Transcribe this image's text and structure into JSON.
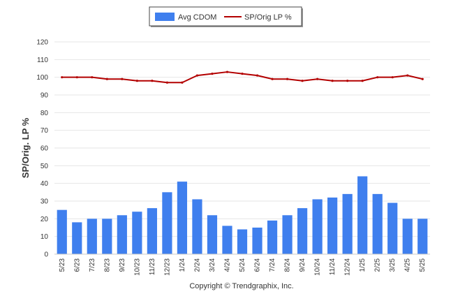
{
  "chart_data": {
    "type": "bar",
    "categories": [
      "5/23",
      "6/23",
      "7/23",
      "8/23",
      "9/23",
      "10/23",
      "11/23",
      "12/23",
      "1/24",
      "2/24",
      "3/24",
      "4/24",
      "5/24",
      "6/24",
      "7/24",
      "8/24",
      "9/24",
      "10/24",
      "11/24",
      "12/24",
      "1/25",
      "2/25",
      "3/25",
      "4/25",
      "5/25"
    ],
    "series": [
      {
        "name": "Avg CDOM",
        "type": "bar",
        "color": "#3f7fee",
        "values": [
          25,
          18,
          20,
          20,
          22,
          24,
          26,
          35,
          41,
          31,
          22,
          16,
          14,
          15,
          19,
          22,
          26,
          31,
          32,
          34,
          44,
          34,
          29,
          20,
          20
        ]
      },
      {
        "name": "SP/Orig LP %",
        "type": "line",
        "color": "#b30000",
        "values": [
          100,
          100,
          100,
          99,
          99,
          98,
          98,
          97,
          97,
          101,
          102,
          103,
          102,
          101,
          99,
          99,
          98,
          99,
          98,
          98,
          98,
          100,
          100,
          101,
          99
        ]
      }
    ],
    "ylabel": "SP/Orig. LP %",
    "ylim": [
      0,
      120
    ],
    "yticks": [
      0,
      10,
      20,
      30,
      40,
      50,
      60,
      70,
      80,
      90,
      100,
      110,
      120
    ],
    "grid": true,
    "legend_position": "top-center"
  },
  "footer": {
    "copyright": "Copyright © Trendgraphix, Inc."
  }
}
